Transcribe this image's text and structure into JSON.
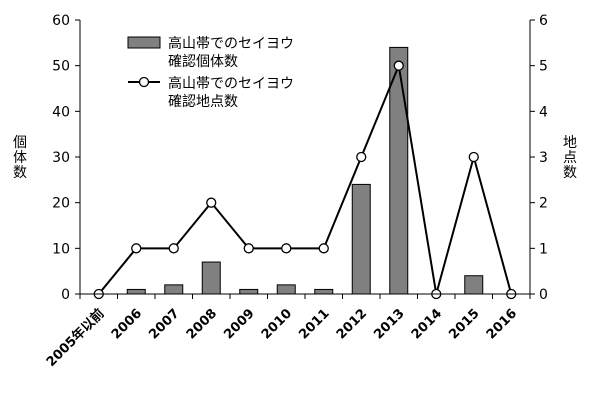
{
  "chart_data": {
    "type": "bar+line",
    "categories": [
      "2005年以前",
      "2006",
      "2007",
      "2008",
      "2009",
      "2010",
      "2011",
      "2012",
      "2013",
      "2014",
      "2015",
      "2016"
    ],
    "series": [
      {
        "name": "高山帯でのセイヨウ確認個体数",
        "name_lines": [
          "高山帯でのセイヨウ",
          "確認個体数"
        ],
        "type": "bar",
        "axis": "left",
        "color": "#808080",
        "values": [
          0,
          1,
          2,
          7,
          1,
          2,
          1,
          24,
          54,
          0,
          4,
          0
        ]
      },
      {
        "name": "高山帯でのセイヨウ確認地点数",
        "name_lines": [
          "高山帯でのセイヨウ",
          "確認地点数"
        ],
        "type": "line",
        "axis": "right",
        "color": "#000000",
        "marker": "open-circle",
        "values": [
          0,
          1,
          1,
          2,
          1,
          1,
          1,
          3,
          5,
          0,
          3,
          0
        ]
      }
    ],
    "ylabel_left": "個体数",
    "ylabel_right": "地点数",
    "ylim_left": [
      0,
      60
    ],
    "ylim_right": [
      0,
      6
    ],
    "yticks_left": [
      "0",
      "10",
      "20",
      "30",
      "40",
      "50",
      "60"
    ],
    "yticks_right": [
      "0",
      "1",
      "2",
      "3",
      "4",
      "5",
      "6"
    ],
    "grid": false,
    "legend_position": "top-left"
  }
}
